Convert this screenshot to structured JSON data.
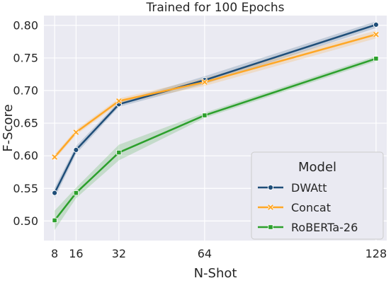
{
  "chart_data": {
    "type": "line",
    "title": "Trained for 100 Epochs",
    "xlabel": "N-Shot",
    "ylabel": "F-Score",
    "x": [
      8,
      16,
      32,
      64,
      128
    ],
    "xlim": [
      4,
      132
    ],
    "ylim": [
      0.47,
      0.815
    ],
    "yticks": [
      0.5,
      0.55,
      0.6,
      0.65,
      0.7,
      0.75,
      0.8
    ],
    "ytick_labels": [
      "0.50",
      "0.55",
      "0.60",
      "0.65",
      "0.70",
      "0.75",
      "0.80"
    ],
    "xticks": [
      8,
      16,
      32,
      64,
      128
    ],
    "xtick_labels": [
      "8",
      "16",
      "32",
      "64",
      "128"
    ],
    "grid": true,
    "background": "#eaeaf2",
    "legend": {
      "title": "Model",
      "placement": "lower-right"
    },
    "series": [
      {
        "name": "DWAtt",
        "color": "#1f4e79",
        "marker": "circle",
        "values": [
          0.543,
          0.609,
          0.679,
          0.716,
          0.801
        ],
        "band": [
          0.008,
          0.006,
          0.004,
          0.006,
          0.005
        ]
      },
      {
        "name": "Concat",
        "color": "#ffa726",
        "marker": "x",
        "values": [
          0.598,
          0.636,
          0.684,
          0.713,
          0.786
        ],
        "band": [
          0.004,
          0.004,
          0.004,
          0.006,
          0.006
        ]
      },
      {
        "name": "RoBERTa-26",
        "color": "#2ca02c",
        "marker": "square",
        "values": [
          0.501,
          0.543,
          0.605,
          0.662,
          0.749
        ],
        "band": [
          0.015,
          0.008,
          0.012,
          0.004,
          0.004
        ]
      }
    ]
  }
}
